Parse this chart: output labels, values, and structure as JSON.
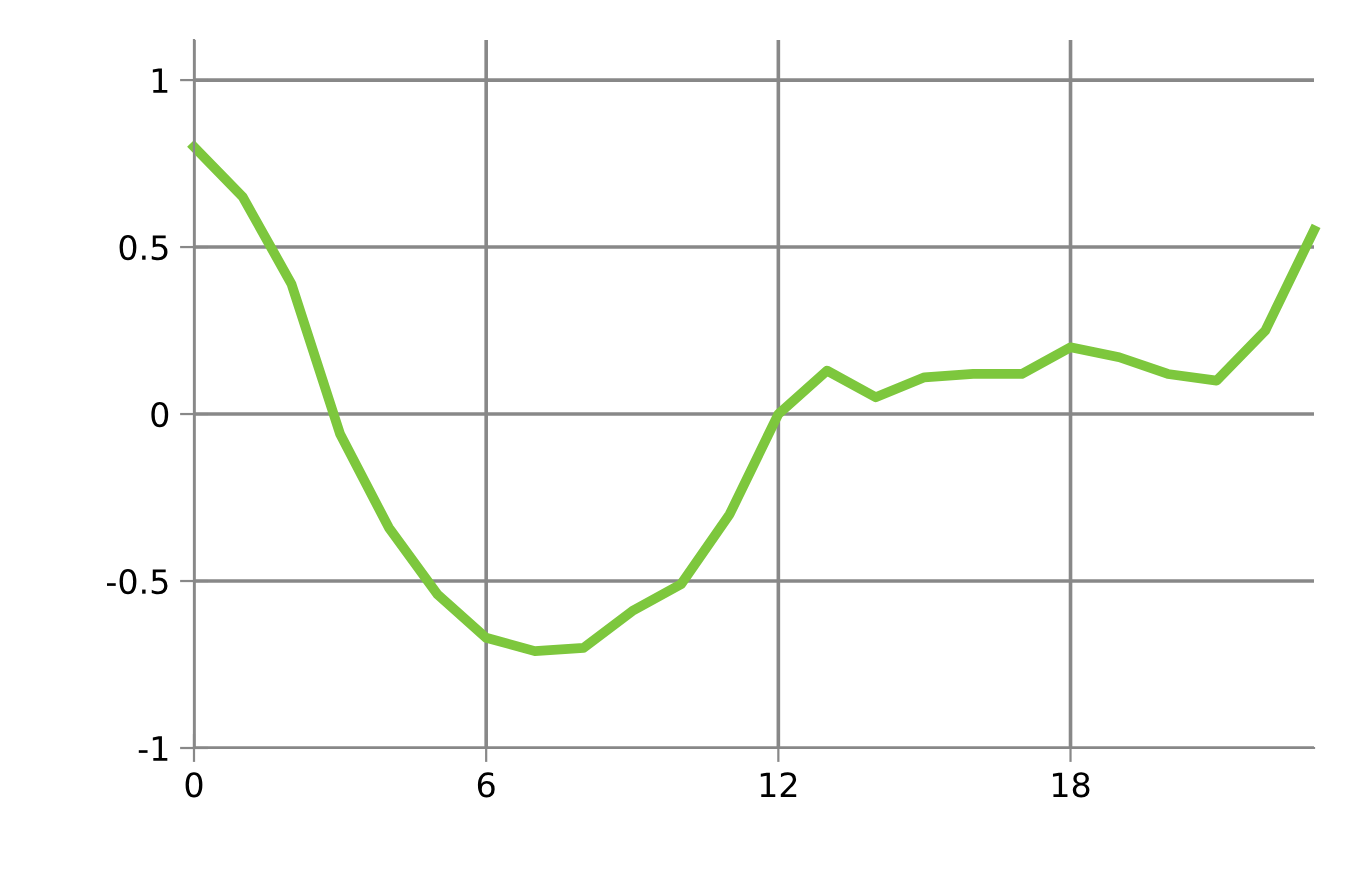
{
  "chart_data": {
    "type": "line",
    "x": [
      0,
      1,
      2,
      3,
      4,
      5,
      6,
      7,
      8,
      9,
      10,
      11,
      12,
      13,
      14,
      15,
      16,
      17,
      18,
      19,
      20,
      21,
      22,
      23
    ],
    "series": [
      {
        "color": "#7dc73d",
        "values": [
          0.8,
          0.65,
          0.39,
          -0.06,
          -0.34,
          -0.54,
          -0.67,
          -0.71,
          -0.7,
          -0.59,
          -0.51,
          -0.3,
          0.0,
          0.13,
          0.05,
          0.11,
          0.12,
          0.12,
          0.2,
          0.17,
          0.12,
          0.1,
          0.25,
          0.55
        ]
      }
    ],
    "xlim": [
      0,
      23
    ],
    "xticks": [
      0,
      6,
      12,
      18
    ],
    "ylim": [
      -1,
      1.12
    ],
    "yticks": [
      {
        "value": -1,
        "label": "-1"
      },
      {
        "value": -0.5,
        "label": "-0.5"
      },
      0,
      0.5,
      1
    ],
    "grid": true,
    "marker": "none",
    "line_style": "solid"
  }
}
